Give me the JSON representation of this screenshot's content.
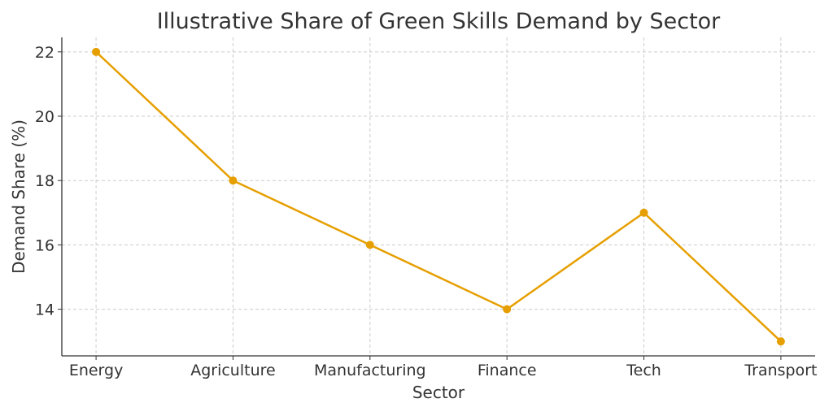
{
  "chart_data": {
    "type": "line",
    "title": "Illustrative Share of Green Skills Demand by Sector",
    "xlabel": "Sector",
    "ylabel": "Demand Share (%)",
    "categories": [
      "Energy",
      "Agriculture",
      "Manufacturing",
      "Finance",
      "Tech",
      "Transport"
    ],
    "series": [
      {
        "name": "Demand Share",
        "values": [
          22,
          18,
          16,
          14,
          17,
          13
        ],
        "color": "#E69F00"
      }
    ],
    "ylim": [
      12.55,
      22.45
    ],
    "yticks": [
      14,
      16,
      18,
      20,
      22
    ],
    "grid": true,
    "legend": "none"
  }
}
